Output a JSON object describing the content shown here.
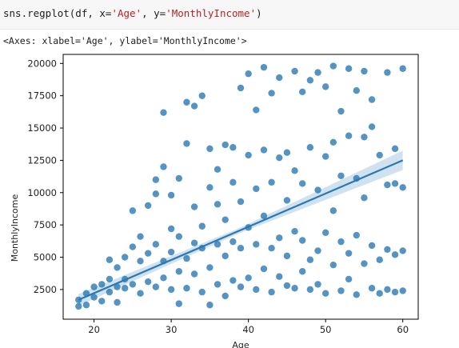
{
  "notebook": {
    "code": {
      "prefix": "sns.regplot(df, x=",
      "arg_x": "'Age'",
      "sep": ", y=",
      "arg_y": "'MonthlyIncome'",
      "suffix": ")"
    },
    "output_repr": "<Axes: xlabel='Age', ylabel='MonthlyIncome'>"
  },
  "colors": {
    "points": "#2a78b4",
    "line": "#2a78b4",
    "ci_band": "#a9cbe4"
  },
  "chart_data": {
    "type": "scatter",
    "title": "",
    "xlabel": "Age",
    "ylabel": "MonthlyIncome",
    "xlim": [
      16,
      62
    ],
    "ylim": [
      200,
      20700
    ],
    "xticks": [
      20,
      30,
      40,
      50,
      60
    ],
    "yticks": [
      2500,
      5000,
      7500,
      10000,
      12500,
      15000,
      17500,
      20000
    ],
    "grid": false,
    "regression": {
      "x": [
        18,
        60
      ],
      "y": [
        1700,
        12500
      ],
      "ci_halfwidth_at_ends": [
        450,
        750
      ]
    },
    "series": [
      {
        "values": [
          [
            18,
            1200
          ],
          [
            18,
            1700
          ],
          [
            19,
            2200
          ],
          [
            19,
            1300
          ],
          [
            20,
            1900
          ],
          [
            20,
            2700
          ],
          [
            21,
            1600
          ],
          [
            21,
            2900
          ],
          [
            22,
            2300
          ],
          [
            22,
            3300
          ],
          [
            22,
            4800
          ],
          [
            23,
            2700
          ],
          [
            23,
            1500
          ],
          [
            23,
            4200
          ],
          [
            24,
            2600
          ],
          [
            24,
            3300
          ],
          [
            24,
            5000
          ],
          [
            25,
            2900
          ],
          [
            25,
            5800
          ],
          [
            25,
            8600
          ],
          [
            26,
            2200
          ],
          [
            26,
            4700
          ],
          [
            26,
            6600
          ],
          [
            27,
            3100
          ],
          [
            27,
            5300
          ],
          [
            27,
            9000
          ],
          [
            28,
            2700
          ],
          [
            28,
            6000
          ],
          [
            28,
            9900
          ],
          [
            28,
            11000
          ],
          [
            29,
            3400
          ],
          [
            29,
            4700
          ],
          [
            29,
            16200
          ],
          [
            29,
            12000
          ],
          [
            30,
            2500
          ],
          [
            30,
            5400
          ],
          [
            30,
            7200
          ],
          [
            30,
            9800
          ],
          [
            31,
            1400
          ],
          [
            31,
            3900
          ],
          [
            31,
            6600
          ],
          [
            31,
            11100
          ],
          [
            32,
            2600
          ],
          [
            32,
            4900
          ],
          [
            32,
            13800
          ],
          [
            32,
            17000
          ],
          [
            33,
            3700
          ],
          [
            33,
            6100
          ],
          [
            33,
            8900
          ],
          [
            33,
            16700
          ],
          [
            34,
            2300
          ],
          [
            34,
            5700
          ],
          [
            34,
            7400
          ],
          [
            34,
            17500
          ],
          [
            35,
            1300
          ],
          [
            35,
            4200
          ],
          [
            35,
            10400
          ],
          [
            35,
            13400
          ],
          [
            36,
            2900
          ],
          [
            36,
            6000
          ],
          [
            36,
            9100
          ],
          [
            36,
            11800
          ],
          [
            37,
            2000
          ],
          [
            37,
            5100
          ],
          [
            37,
            7900
          ],
          [
            37,
            13700
          ],
          [
            38,
            3200
          ],
          [
            38,
            6200
          ],
          [
            38,
            10800
          ],
          [
            38,
            13500
          ],
          [
            39,
            2700
          ],
          [
            39,
            5700
          ],
          [
            39,
            9300
          ],
          [
            39,
            18100
          ],
          [
            40,
            3400
          ],
          [
            40,
            7300
          ],
          [
            40,
            12900
          ],
          [
            40,
            19200
          ],
          [
            41,
            2500
          ],
          [
            41,
            6000
          ],
          [
            41,
            10300
          ],
          [
            41,
            16400
          ],
          [
            42,
            4100
          ],
          [
            42,
            8200
          ],
          [
            42,
            13300
          ],
          [
            42,
            19700
          ],
          [
            43,
            2300
          ],
          [
            43,
            5700
          ],
          [
            43,
            10800
          ],
          [
            43,
            17700
          ],
          [
            44,
            3500
          ],
          [
            44,
            6500
          ],
          [
            44,
            12700
          ],
          [
            44,
            18900
          ],
          [
            45,
            2800
          ],
          [
            45,
            5100
          ],
          [
            45,
            9400
          ],
          [
            45,
            13100
          ],
          [
            46,
            2600
          ],
          [
            46,
            7000
          ],
          [
            46,
            11700
          ],
          [
            46,
            19400
          ],
          [
            47,
            3900
          ],
          [
            47,
            6300
          ],
          [
            47,
            10700
          ],
          [
            47,
            17800
          ],
          [
            48,
            2500
          ],
          [
            48,
            4800
          ],
          [
            48,
            13500
          ],
          [
            48,
            18700
          ],
          [
            49,
            2900
          ],
          [
            49,
            5500
          ],
          [
            49,
            10200
          ],
          [
            49,
            19300
          ],
          [
            50,
            2200
          ],
          [
            50,
            6900
          ],
          [
            50,
            12800
          ],
          [
            50,
            18200
          ],
          [
            51,
            4400
          ],
          [
            51,
            8600
          ],
          [
            51,
            13900
          ],
          [
            51,
            19800
          ],
          [
            52,
            2400
          ],
          [
            52,
            6200
          ],
          [
            52,
            11300
          ],
          [
            52,
            16300
          ],
          [
            53,
            3300
          ],
          [
            53,
            5300
          ],
          [
            53,
            14400
          ],
          [
            53,
            19600
          ],
          [
            54,
            2100
          ],
          [
            54,
            6700
          ],
          [
            54,
            11100
          ],
          [
            54,
            17900
          ],
          [
            55,
            4500
          ],
          [
            55,
            9600
          ],
          [
            55,
            14300
          ],
          [
            55,
            19400
          ],
          [
            56,
            2600
          ],
          [
            56,
            5900
          ],
          [
            56,
            15100
          ],
          [
            56,
            17200
          ],
          [
            57,
            2200
          ],
          [
            57,
            4800
          ],
          [
            57,
            12900
          ],
          [
            58,
            2500
          ],
          [
            58,
            5600
          ],
          [
            58,
            10600
          ],
          [
            58,
            19300
          ],
          [
            59,
            2300
          ],
          [
            59,
            5200
          ],
          [
            59,
            10700
          ],
          [
            59,
            13400
          ],
          [
            60,
            2400
          ],
          [
            60,
            5500
          ],
          [
            60,
            10400
          ],
          [
            60,
            19600
          ]
        ]
      }
    ]
  }
}
